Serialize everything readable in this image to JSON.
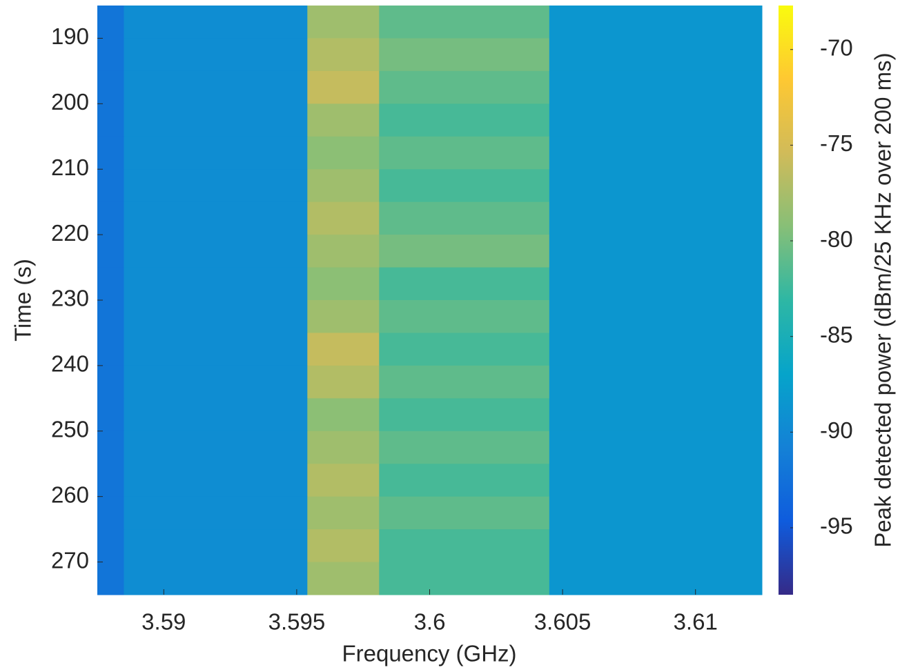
{
  "chart_data": {
    "type": "heatmap",
    "xlabel": "Frequency (GHz)",
    "ylabel": "Time (s)",
    "colorbar_label": "Peak detected power (dBm/25 KHz over 200 ms)",
    "x_edges": [
      3.5875,
      3.5885,
      3.5954,
      3.5981,
      3.6045,
      3.6125
    ],
    "y_edges": [
      185,
      190,
      195,
      200,
      205,
      210,
      215,
      220,
      225,
      230,
      235,
      240,
      245,
      250,
      255,
      260,
      265,
      270,
      275
    ],
    "z": [
      [
        -92,
        -89.5,
        -78,
        -81,
        -88.5
      ],
      [
        -92,
        -89.5,
        -77,
        -80,
        -88.5
      ],
      [
        -92,
        -89.5,
        -76,
        -81,
        -88.5
      ],
      [
        -92,
        -89.5,
        -78,
        -82,
        -88.5
      ],
      [
        -92,
        -89.5,
        -79,
        -81,
        -88.5
      ],
      [
        -92,
        -89.5,
        -78,
        -82,
        -88.5
      ],
      [
        -92,
        -89.5,
        -77,
        -81,
        -88.5
      ],
      [
        -92,
        -89.5,
        -78,
        -80,
        -88.5
      ],
      [
        -92,
        -89.5,
        -79,
        -82,
        -88.5
      ],
      [
        -92,
        -89.5,
        -78,
        -81,
        -88.5
      ],
      [
        -92,
        -89.5,
        -76,
        -82,
        -88.5
      ],
      [
        -92,
        -89.5,
        -77,
        -81,
        -88.5
      ],
      [
        -92,
        -89.5,
        -79,
        -82,
        -88.5
      ],
      [
        -92,
        -89.5,
        -78,
        -81,
        -88.5
      ],
      [
        -92,
        -89.5,
        -77,
        -82,
        -88.5
      ],
      [
        -92,
        -89.5,
        -78,
        -81,
        -88.5
      ],
      [
        -92,
        -89.5,
        -77,
        -82,
        -88.5
      ],
      [
        -92,
        -89.5,
        -78,
        -82,
        -88.5
      ]
    ],
    "xlim": [
      3.5875,
      3.6125
    ],
    "xticks": [
      3.59,
      3.595,
      3.6,
      3.605,
      3.61
    ],
    "ylim": [
      185,
      275
    ],
    "yticks": [
      190,
      200,
      210,
      220,
      230,
      240,
      250,
      260,
      270
    ],
    "y_reversed": true,
    "clim": [
      -98.5,
      -67.7
    ],
    "cticks": [
      -95,
      -90,
      -85,
      -80,
      -75,
      -70
    ],
    "colormap": [
      "#352a87",
      "#0f5cdd",
      "#1481d6",
      "#06a4ca",
      "#2eb7a4",
      "#87bf77",
      "#d1bb59",
      "#fec832",
      "#f9fb0e"
    ]
  }
}
